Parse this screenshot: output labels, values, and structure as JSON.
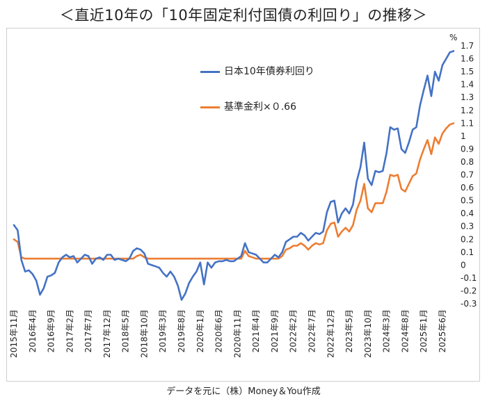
{
  "title": "＜直近10年の「10年固定利付国債の利回り」の推移＞",
  "footer": "データを元に（株）Money＆You作成",
  "chart_data": {
    "type": "line",
    "ylabel": "%",
    "ylim": [
      -0.3,
      1.7
    ],
    "y_ticks": [
      -0.3,
      -0.2,
      -0.1,
      0,
      0.1,
      0.2,
      0.3,
      0.4,
      0.5,
      0.6,
      0.7,
      0.8,
      0.9,
      1,
      1.1,
      1.2,
      1.3,
      1.4,
      1.5,
      1.6,
      1.7
    ],
    "y_tick_labels": [
      "-0.3",
      "-0.2",
      "-0.1",
      "0",
      "0.1",
      "0.2",
      "0.3",
      "0.4",
      "0.5",
      "0.6",
      "0.7",
      "0.8",
      "0.9",
      "1",
      "1.1",
      "1.2",
      "1.3",
      "1.4",
      "1.5",
      "1.6",
      "1.7"
    ],
    "x_start": "2015-11",
    "x_labels": [
      {
        "label": "2015年11月",
        "index": 0
      },
      {
        "label": "2016年4月",
        "index": 5
      },
      {
        "label": "2016年9月",
        "index": 10
      },
      {
        "label": "2017年2月",
        "index": 15
      },
      {
        "label": "2017年7月",
        "index": 20
      },
      {
        "label": "2017年12月",
        "index": 25
      },
      {
        "label": "2018年5月",
        "index": 30
      },
      {
        "label": "2018年10月",
        "index": 35
      },
      {
        "label": "2019年3月",
        "index": 40
      },
      {
        "label": "2019年8月",
        "index": 45
      },
      {
        "label": "2020年1月",
        "index": 50
      },
      {
        "label": "2020年6月",
        "index": 55
      },
      {
        "label": "2020年11月",
        "index": 60
      },
      {
        "label": "2021年4月",
        "index": 65
      },
      {
        "label": "2021年9月",
        "index": 70
      },
      {
        "label": "2022年2月",
        "index": 75
      },
      {
        "label": "2022年7月",
        "index": 80
      },
      {
        "label": "2022年12月",
        "index": 85
      },
      {
        "label": "2023年5月",
        "index": 90
      },
      {
        "label": "2023年10月",
        "index": 95
      },
      {
        "label": "2024年3月",
        "index": 100
      },
      {
        "label": "2024年8月",
        "index": 105
      },
      {
        "label": "2025年1月",
        "index": 110
      },
      {
        "label": "2025年6月",
        "index": 115
      }
    ],
    "series": [
      {
        "name": "日本10年債券利回り",
        "color": "#4472c4",
        "values": [
          0.31,
          0.27,
          0.04,
          -0.05,
          -0.04,
          -0.07,
          -0.12,
          -0.23,
          -0.18,
          -0.09,
          -0.08,
          -0.06,
          0.02,
          0.06,
          0.08,
          0.06,
          0.07,
          0.02,
          0.05,
          0.08,
          0.07,
          0.01,
          0.05,
          0.06,
          0.04,
          0.08,
          0.08,
          0.04,
          0.05,
          0.04,
          0.03,
          0.05,
          0.11,
          0.13,
          0.12,
          0.09,
          0.01,
          0.0,
          -0.01,
          -0.02,
          -0.06,
          -0.09,
          -0.05,
          -0.09,
          -0.16,
          -0.27,
          -0.22,
          -0.14,
          -0.09,
          -0.05,
          0.02,
          -0.15,
          0.02,
          -0.02,
          0.02,
          0.03,
          0.03,
          0.04,
          0.03,
          0.03,
          0.05,
          0.07,
          0.17,
          0.1,
          0.09,
          0.08,
          0.05,
          0.02,
          0.02,
          0.05,
          0.08,
          0.06,
          0.1,
          0.18,
          0.2,
          0.22,
          0.22,
          0.25,
          0.23,
          0.19,
          0.22,
          0.25,
          0.24,
          0.26,
          0.41,
          0.49,
          0.5,
          0.33,
          0.4,
          0.44,
          0.4,
          0.47,
          0.65,
          0.76,
          0.95,
          0.67,
          0.62,
          0.73,
          0.72,
          0.73,
          0.87,
          1.07,
          1.05,
          1.06,
          0.9,
          0.87,
          0.95,
          1.05,
          1.07,
          1.24,
          1.36,
          1.47,
          1.31,
          1.5,
          1.43,
          1.55,
          1.6,
          1.65,
          1.66
        ]
      },
      {
        "name": "基準金利×0.66",
        "color": "#ed7d31",
        "values": [
          0.2,
          0.18,
          0.06,
          0.05,
          0.05,
          0.05,
          0.05,
          0.05,
          0.05,
          0.05,
          0.05,
          0.05,
          0.05,
          0.05,
          0.05,
          0.05,
          0.05,
          0.05,
          0.05,
          0.05,
          0.05,
          0.05,
          0.05,
          0.05,
          0.05,
          0.05,
          0.05,
          0.05,
          0.05,
          0.05,
          0.05,
          0.05,
          0.05,
          0.07,
          0.08,
          0.06,
          0.05,
          0.05,
          0.05,
          0.05,
          0.05,
          0.05,
          0.05,
          0.05,
          0.05,
          0.05,
          0.05,
          0.05,
          0.05,
          0.05,
          0.05,
          0.05,
          0.05,
          0.05,
          0.05,
          0.05,
          0.05,
          0.05,
          0.05,
          0.05,
          0.05,
          0.05,
          0.11,
          0.07,
          0.06,
          0.05,
          0.05,
          0.05,
          0.05,
          0.05,
          0.05,
          0.05,
          0.07,
          0.12,
          0.13,
          0.15,
          0.15,
          0.17,
          0.15,
          0.12,
          0.15,
          0.17,
          0.16,
          0.17,
          0.27,
          0.32,
          0.33,
          0.22,
          0.26,
          0.29,
          0.26,
          0.31,
          0.43,
          0.5,
          0.63,
          0.44,
          0.41,
          0.48,
          0.48,
          0.48,
          0.57,
          0.7,
          0.69,
          0.7,
          0.59,
          0.57,
          0.63,
          0.69,
          0.71,
          0.82,
          0.9,
          0.97,
          0.86,
          0.99,
          0.94,
          1.02,
          1.06,
          1.09,
          1.1
        ]
      }
    ],
    "legend": [
      {
        "label": "日本10年債券利回り",
        "color": "#4472c4"
      },
      {
        "label": "基準金利×０.66",
        "color": "#ed7d31"
      }
    ]
  }
}
